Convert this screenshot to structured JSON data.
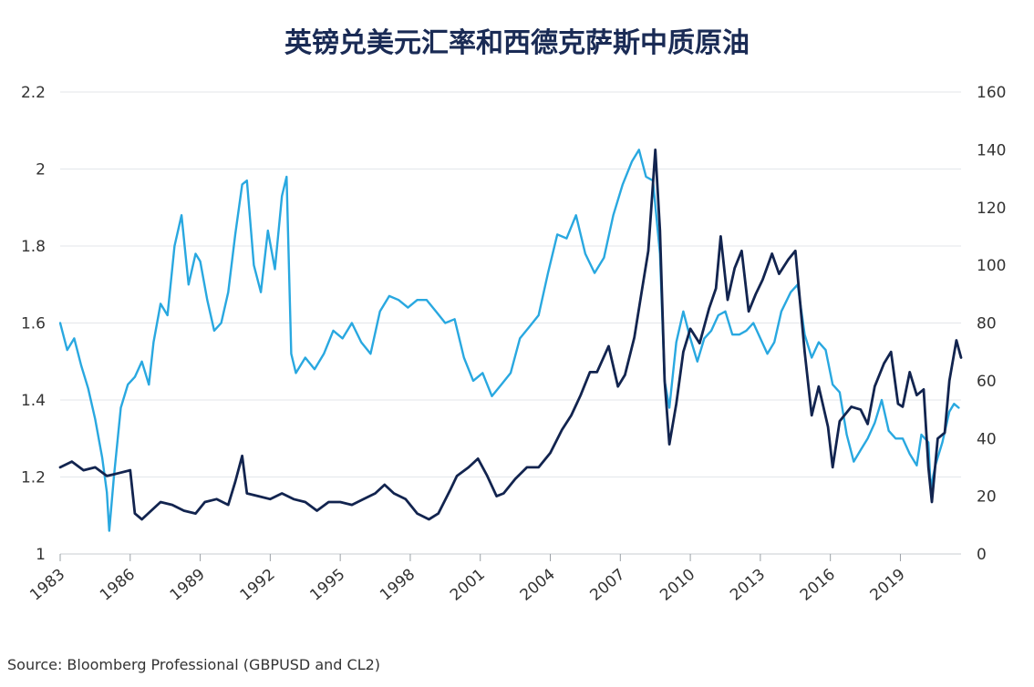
{
  "chart_data": {
    "type": "line",
    "title": "英镑兑美元汇率和西德克萨斯中质原油",
    "xlabel": "",
    "ylabel": "",
    "xlim": [
      1983,
      2021.6
    ],
    "ylim_left": [
      1,
      2.2
    ],
    "ylim_right": [
      0,
      160
    ],
    "x_ticks": [
      "1983",
      "1986",
      "1989",
      "1992",
      "1995",
      "1998",
      "2001",
      "2004",
      "2007",
      "2010",
      "2013",
      "2016",
      "2019"
    ],
    "y_ticks_left": [
      "1",
      "1.2",
      "1.4",
      "1.6",
      "1.8",
      "2",
      "2.2"
    ],
    "y_ticks_right": [
      "0",
      "20",
      "40",
      "60",
      "80",
      "100",
      "120",
      "140",
      "160"
    ],
    "grid": "horizontal",
    "series": [
      {
        "axis": "left",
        "color": "#29a8e0",
        "points": [
          [
            1983.0,
            1.6
          ],
          [
            1983.3,
            1.53
          ],
          [
            1983.6,
            1.56
          ],
          [
            1983.9,
            1.49
          ],
          [
            1984.2,
            1.43
          ],
          [
            1984.5,
            1.35
          ],
          [
            1984.8,
            1.25
          ],
          [
            1985.0,
            1.16
          ],
          [
            1985.1,
            1.06
          ],
          [
            1985.3,
            1.2
          ],
          [
            1985.6,
            1.38
          ],
          [
            1985.9,
            1.44
          ],
          [
            1986.2,
            1.46
          ],
          [
            1986.5,
            1.5
          ],
          [
            1986.8,
            1.44
          ],
          [
            1987.0,
            1.55
          ],
          [
            1987.3,
            1.65
          ],
          [
            1987.6,
            1.62
          ],
          [
            1987.9,
            1.8
          ],
          [
            1988.2,
            1.88
          ],
          [
            1988.5,
            1.7
          ],
          [
            1988.8,
            1.78
          ],
          [
            1989.0,
            1.76
          ],
          [
            1989.3,
            1.66
          ],
          [
            1989.6,
            1.58
          ],
          [
            1989.9,
            1.6
          ],
          [
            1990.2,
            1.68
          ],
          [
            1990.5,
            1.83
          ],
          [
            1990.8,
            1.96
          ],
          [
            1991.0,
            1.97
          ],
          [
            1991.3,
            1.75
          ],
          [
            1991.6,
            1.68
          ],
          [
            1991.9,
            1.84
          ],
          [
            1992.2,
            1.74
          ],
          [
            1992.5,
            1.93
          ],
          [
            1992.7,
            1.98
          ],
          [
            1992.9,
            1.52
          ],
          [
            1993.1,
            1.47
          ],
          [
            1993.5,
            1.51
          ],
          [
            1993.9,
            1.48
          ],
          [
            1994.3,
            1.52
          ],
          [
            1994.7,
            1.58
          ],
          [
            1995.1,
            1.56
          ],
          [
            1995.5,
            1.6
          ],
          [
            1995.9,
            1.55
          ],
          [
            1996.3,
            1.52
          ],
          [
            1996.7,
            1.63
          ],
          [
            1997.1,
            1.67
          ],
          [
            1997.5,
            1.66
          ],
          [
            1997.9,
            1.64
          ],
          [
            1998.3,
            1.66
          ],
          [
            1998.7,
            1.66
          ],
          [
            1999.1,
            1.63
          ],
          [
            1999.5,
            1.6
          ],
          [
            1999.9,
            1.61
          ],
          [
            2000.3,
            1.51
          ],
          [
            2000.7,
            1.45
          ],
          [
            2001.1,
            1.47
          ],
          [
            2001.5,
            1.41
          ],
          [
            2001.9,
            1.44
          ],
          [
            2002.3,
            1.47
          ],
          [
            2002.7,
            1.56
          ],
          [
            2003.1,
            1.59
          ],
          [
            2003.5,
            1.62
          ],
          [
            2003.9,
            1.73
          ],
          [
            2004.3,
            1.83
          ],
          [
            2004.7,
            1.82
          ],
          [
            2005.1,
            1.88
          ],
          [
            2005.5,
            1.78
          ],
          [
            2005.9,
            1.73
          ],
          [
            2006.3,
            1.77
          ],
          [
            2006.7,
            1.88
          ],
          [
            2007.1,
            1.96
          ],
          [
            2007.5,
            2.02
          ],
          [
            2007.8,
            2.05
          ],
          [
            2008.1,
            1.98
          ],
          [
            2008.4,
            1.97
          ],
          [
            2008.7,
            1.78
          ],
          [
            2008.9,
            1.45
          ],
          [
            2009.1,
            1.38
          ],
          [
            2009.4,
            1.55
          ],
          [
            2009.7,
            1.63
          ],
          [
            2010.0,
            1.56
          ],
          [
            2010.3,
            1.5
          ],
          [
            2010.6,
            1.56
          ],
          [
            2010.9,
            1.58
          ],
          [
            2011.2,
            1.62
          ],
          [
            2011.5,
            1.63
          ],
          [
            2011.8,
            1.57
          ],
          [
            2012.1,
            1.57
          ],
          [
            2012.4,
            1.58
          ],
          [
            2012.7,
            1.6
          ],
          [
            2013.0,
            1.56
          ],
          [
            2013.3,
            1.52
          ],
          [
            2013.6,
            1.55
          ],
          [
            2013.9,
            1.63
          ],
          [
            2014.3,
            1.68
          ],
          [
            2014.6,
            1.7
          ],
          [
            2014.9,
            1.57
          ],
          [
            2015.2,
            1.51
          ],
          [
            2015.5,
            1.55
          ],
          [
            2015.8,
            1.53
          ],
          [
            2016.1,
            1.44
          ],
          [
            2016.4,
            1.42
          ],
          [
            2016.7,
            1.31
          ],
          [
            2017.0,
            1.24
          ],
          [
            2017.3,
            1.27
          ],
          [
            2017.6,
            1.3
          ],
          [
            2017.9,
            1.34
          ],
          [
            2018.2,
            1.4
          ],
          [
            2018.5,
            1.32
          ],
          [
            2018.8,
            1.3
          ],
          [
            2019.1,
            1.3
          ],
          [
            2019.4,
            1.26
          ],
          [
            2019.7,
            1.23
          ],
          [
            2019.9,
            1.31
          ],
          [
            2020.2,
            1.29
          ],
          [
            2020.3,
            1.17
          ],
          [
            2020.5,
            1.23
          ],
          [
            2020.8,
            1.29
          ],
          [
            2021.1,
            1.37
          ],
          [
            2021.3,
            1.39
          ],
          [
            2021.5,
            1.38
          ]
        ]
      },
      {
        "axis": "right",
        "color": "#12244f",
        "points": [
          [
            1983.0,
            30
          ],
          [
            1983.5,
            32
          ],
          [
            1984.0,
            29
          ],
          [
            1984.5,
            30
          ],
          [
            1985.0,
            27
          ],
          [
            1985.5,
            28
          ],
          [
            1986.0,
            29
          ],
          [
            1986.2,
            14
          ],
          [
            1986.5,
            12
          ],
          [
            1986.9,
            15
          ],
          [
            1987.3,
            18
          ],
          [
            1987.8,
            17
          ],
          [
            1988.3,
            15
          ],
          [
            1988.8,
            14
          ],
          [
            1989.2,
            18
          ],
          [
            1989.7,
            19
          ],
          [
            1990.2,
            17
          ],
          [
            1990.5,
            25
          ],
          [
            1990.8,
            34
          ],
          [
            1991.0,
            21
          ],
          [
            1991.5,
            20
          ],
          [
            1992.0,
            19
          ],
          [
            1992.5,
            21
          ],
          [
            1993.0,
            19
          ],
          [
            1993.5,
            18
          ],
          [
            1994.0,
            15
          ],
          [
            1994.5,
            18
          ],
          [
            1995.0,
            18
          ],
          [
            1995.5,
            17
          ],
          [
            1996.0,
            19
          ],
          [
            1996.5,
            21
          ],
          [
            1996.9,
            24
          ],
          [
            1997.3,
            21
          ],
          [
            1997.8,
            19
          ],
          [
            1998.3,
            14
          ],
          [
            1998.8,
            12
          ],
          [
            1999.2,
            14
          ],
          [
            1999.7,
            22
          ],
          [
            2000.0,
            27
          ],
          [
            2000.5,
            30
          ],
          [
            2000.9,
            33
          ],
          [
            2001.3,
            27
          ],
          [
            2001.7,
            20
          ],
          [
            2002.0,
            21
          ],
          [
            2002.5,
            26
          ],
          [
            2003.0,
            30
          ],
          [
            2003.5,
            30
          ],
          [
            2004.0,
            35
          ],
          [
            2004.5,
            43
          ],
          [
            2004.9,
            48
          ],
          [
            2005.3,
            55
          ],
          [
            2005.7,
            63
          ],
          [
            2006.0,
            63
          ],
          [
            2006.5,
            72
          ],
          [
            2006.9,
            58
          ],
          [
            2007.2,
            62
          ],
          [
            2007.6,
            75
          ],
          [
            2007.9,
            90
          ],
          [
            2008.2,
            105
          ],
          [
            2008.5,
            140
          ],
          [
            2008.7,
            112
          ],
          [
            2008.9,
            60
          ],
          [
            2009.1,
            38
          ],
          [
            2009.4,
            52
          ],
          [
            2009.7,
            70
          ],
          [
            2010.0,
            78
          ],
          [
            2010.4,
            73
          ],
          [
            2010.8,
            85
          ],
          [
            2011.1,
            92
          ],
          [
            2011.3,
            110
          ],
          [
            2011.6,
            88
          ],
          [
            2011.9,
            99
          ],
          [
            2012.2,
            105
          ],
          [
            2012.5,
            84
          ],
          [
            2012.8,
            90
          ],
          [
            2013.1,
            95
          ],
          [
            2013.5,
            104
          ],
          [
            2013.8,
            97
          ],
          [
            2014.2,
            102
          ],
          [
            2014.5,
            105
          ],
          [
            2014.9,
            70
          ],
          [
            2015.2,
            48
          ],
          [
            2015.5,
            58
          ],
          [
            2015.9,
            44
          ],
          [
            2016.1,
            30
          ],
          [
            2016.4,
            46
          ],
          [
            2016.9,
            51
          ],
          [
            2017.3,
            50
          ],
          [
            2017.6,
            45
          ],
          [
            2017.9,
            58
          ],
          [
            2018.3,
            66
          ],
          [
            2018.6,
            70
          ],
          [
            2018.9,
            52
          ],
          [
            2019.1,
            51
          ],
          [
            2019.4,
            63
          ],
          [
            2019.7,
            55
          ],
          [
            2020.0,
            57
          ],
          [
            2020.2,
            30
          ],
          [
            2020.35,
            18
          ],
          [
            2020.6,
            40
          ],
          [
            2020.9,
            42
          ],
          [
            2021.1,
            60
          ],
          [
            2021.4,
            74
          ],
          [
            2021.6,
            68
          ]
        ]
      }
    ]
  },
  "source": "Source: Bloomberg Professional (GBPUSD and CL2)"
}
